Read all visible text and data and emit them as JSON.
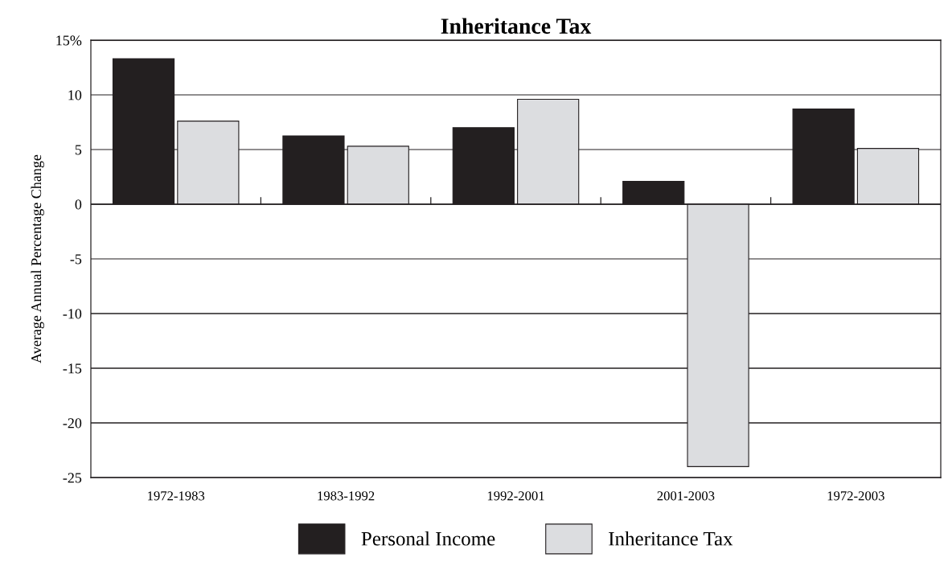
{
  "chart_data": {
    "type": "bar",
    "title": "Inheritance Tax",
    "ylabel": "Average Annual Percentage Change",
    "categories": [
      "1972-1983",
      "1983-1992",
      "1992-2001",
      "2001-2003",
      "1972-2003"
    ],
    "series": [
      {
        "name": "Personal Income",
        "color": "#231f20",
        "values": [
          13.3,
          6.25,
          7.0,
          2.1,
          8.7
        ]
      },
      {
        "name": "Inheritance Tax",
        "color": "#dcdde0",
        "values": [
          7.6,
          5.3,
          9.6,
          -24.0,
          5.1
        ]
      }
    ],
    "ylim": [
      -25,
      15
    ],
    "yticks": [
      -25,
      -20,
      -15,
      -10,
      -5,
      0,
      5,
      10,
      {
        "value": 15,
        "label": "15%"
      }
    ],
    "grid": "y",
    "legend": "bottom"
  }
}
